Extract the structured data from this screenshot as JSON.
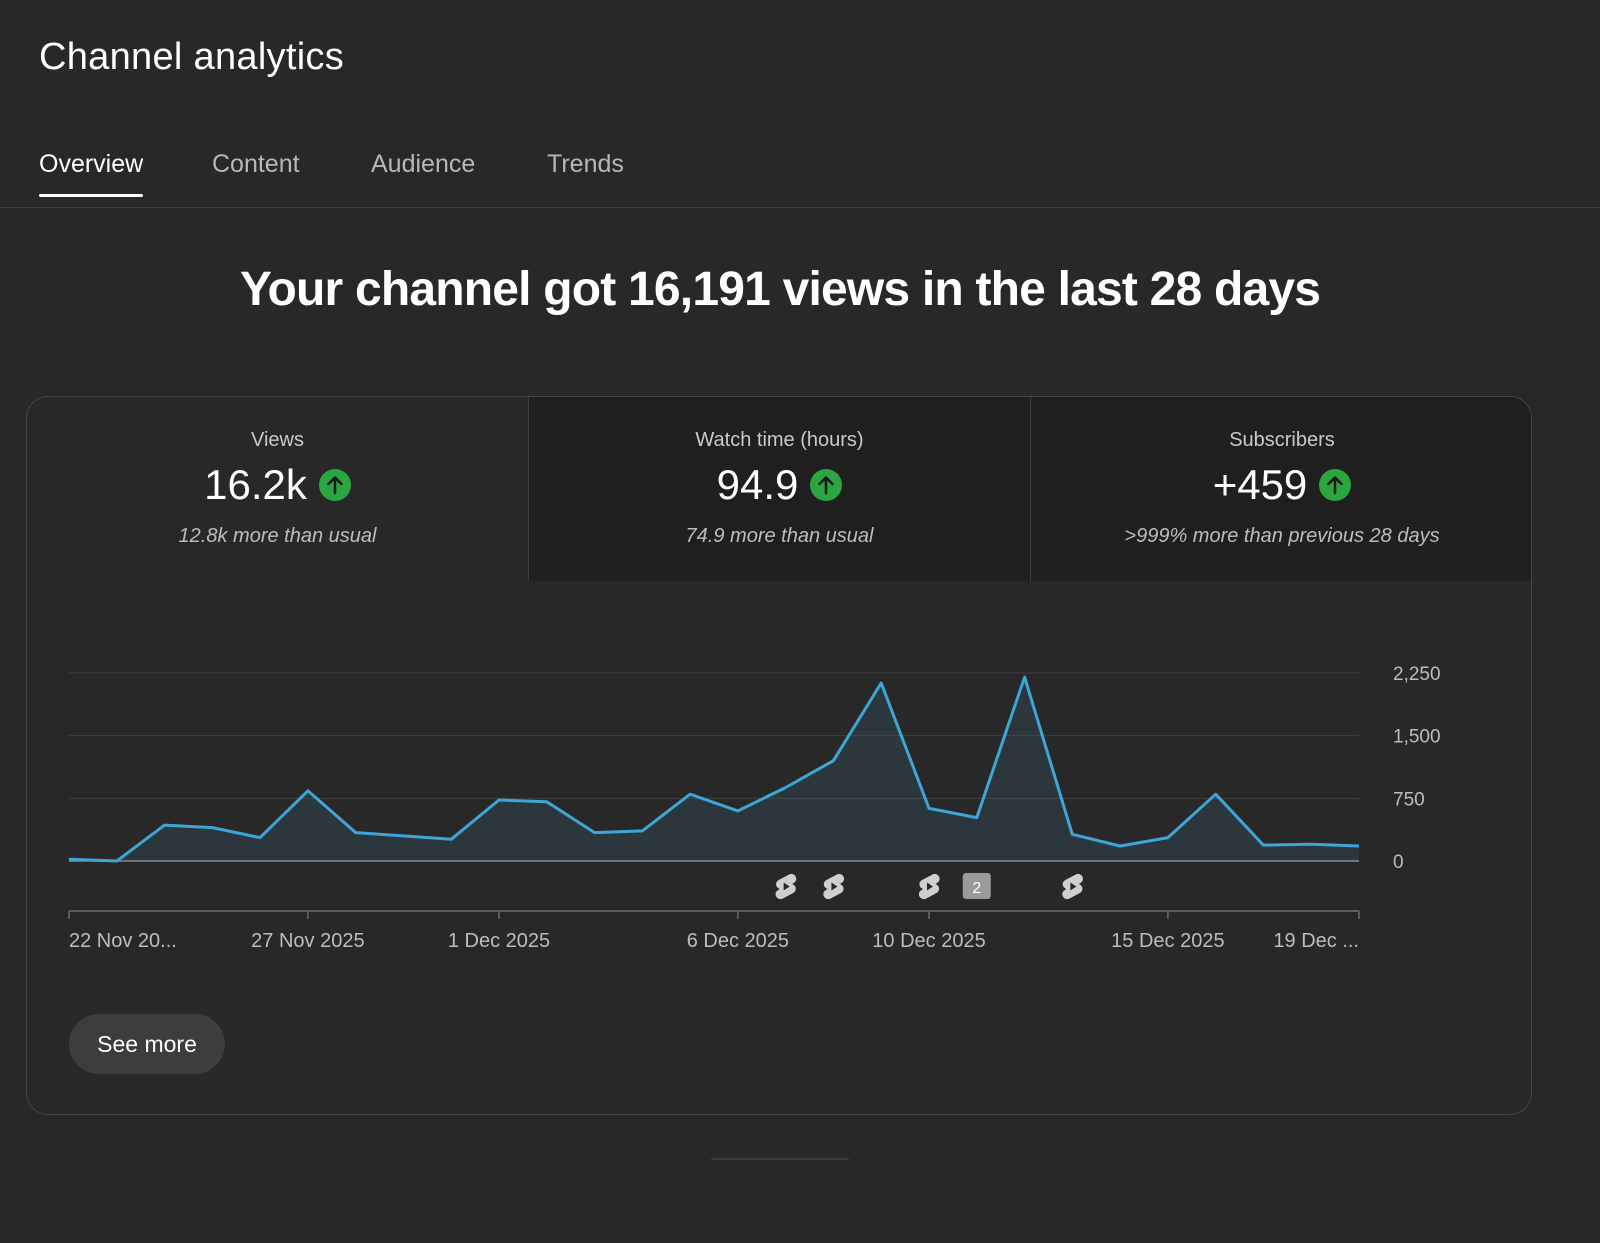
{
  "header": {
    "title": "Channel analytics"
  },
  "tabs": [
    {
      "label": "Overview",
      "active": true
    },
    {
      "label": "Content",
      "active": false
    },
    {
      "label": "Audience",
      "active": false
    },
    {
      "label": "Trends",
      "active": false
    }
  ],
  "headline": "Your channel got 16,191 views in the last 28 days",
  "metrics": [
    {
      "label": "Views",
      "value": "16.2k",
      "trend": "up",
      "subtext": "12.8k more than usual"
    },
    {
      "label": "Watch time (hours)",
      "value": "94.9",
      "trend": "up",
      "subtext": "74.9 more than usual"
    },
    {
      "label": "Subscribers",
      "value": "+459",
      "trend": "up",
      "subtext": ">999% more than previous 28 days"
    }
  ],
  "colors": {
    "line": "#3ea6d6",
    "trend_up": "#2ba640",
    "background": "#282828"
  },
  "chart_data": {
    "type": "area",
    "x": [
      "22 Nov",
      "23 Nov",
      "24 Nov",
      "25 Nov",
      "26 Nov",
      "27 Nov",
      "28 Nov",
      "29 Nov",
      "30 Nov",
      "1 Dec",
      "2 Dec",
      "3 Dec",
      "4 Dec",
      "5 Dec",
      "6 Dec",
      "7 Dec",
      "8 Dec",
      "9 Dec",
      "10 Dec",
      "11 Dec",
      "12 Dec",
      "13 Dec",
      "14 Dec",
      "15 Dec",
      "16 Dec",
      "17 Dec",
      "18 Dec",
      "19 Dec"
    ],
    "series": [
      {
        "values": [
          20,
          0,
          430,
          400,
          280,
          840,
          340,
          300,
          260,
          730,
          710,
          340,
          360,
          800,
          600,
          880,
          1200,
          2130,
          630,
          520,
          2200,
          320,
          180,
          280,
          800,
          190,
          200,
          180
        ]
      }
    ],
    "ylim": [
      0,
      2250
    ],
    "yticks": [
      "2,250",
      "1,500",
      "750",
      "0"
    ],
    "xtick_labels": [
      {
        "label": "22 Nov 20...",
        "index": 0
      },
      {
        "label": "27 Nov 2025",
        "index": 5
      },
      {
        "label": "1 Dec 2025",
        "index": 9
      },
      {
        "label": "6 Dec 2025",
        "index": 14
      },
      {
        "label": "10 Dec 2025",
        "index": 18
      },
      {
        "label": "15 Dec 2025",
        "index": 23
      },
      {
        "label": "19 Dec ...",
        "index": 27
      }
    ],
    "markers": [
      {
        "type": "shorts-icon",
        "index": 15
      },
      {
        "type": "shorts-icon",
        "index": 16
      },
      {
        "type": "shorts-icon",
        "index": 18
      },
      {
        "type": "count-badge",
        "index": 19,
        "label": "2"
      },
      {
        "type": "shorts-icon",
        "index": 21
      }
    ],
    "grid": true
  },
  "actions": {
    "see_more_label": "See more"
  }
}
